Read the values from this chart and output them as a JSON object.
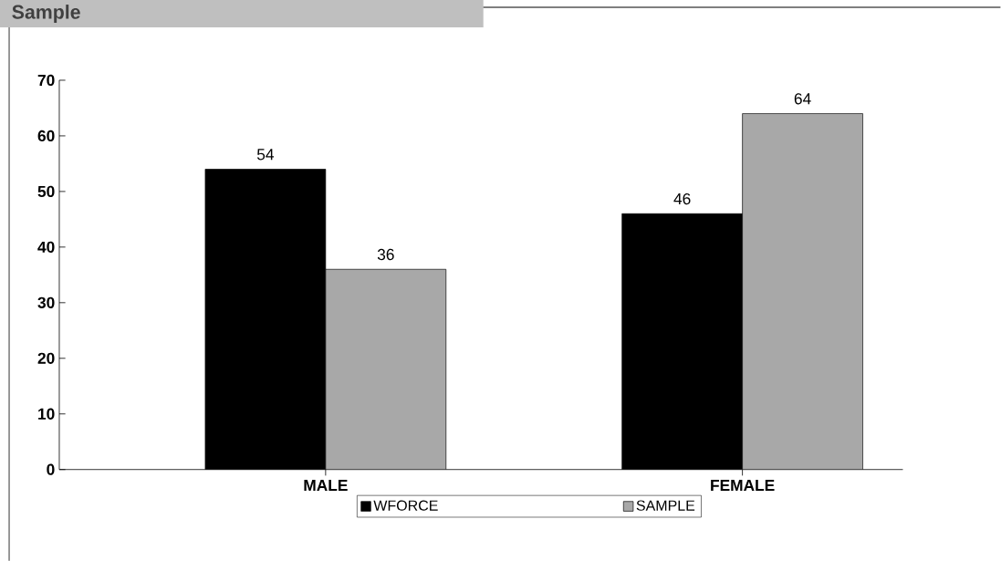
{
  "chart_data": {
    "type": "bar",
    "title": "Sample",
    "categories": [
      "MALE",
      "FEMALE"
    ],
    "series": [
      {
        "name": "WFORCE",
        "color": "#000000",
        "values": [
          54,
          46
        ]
      },
      {
        "name": "SAMPLE",
        "color": "#a8a8a8",
        "values": [
          36,
          64
        ]
      }
    ],
    "ylim": [
      0,
      70
    ],
    "yticks": [
      0,
      10,
      20,
      30,
      40,
      50,
      60,
      70
    ],
    "grid": false,
    "legend": "bottom",
    "data_labels": true
  }
}
